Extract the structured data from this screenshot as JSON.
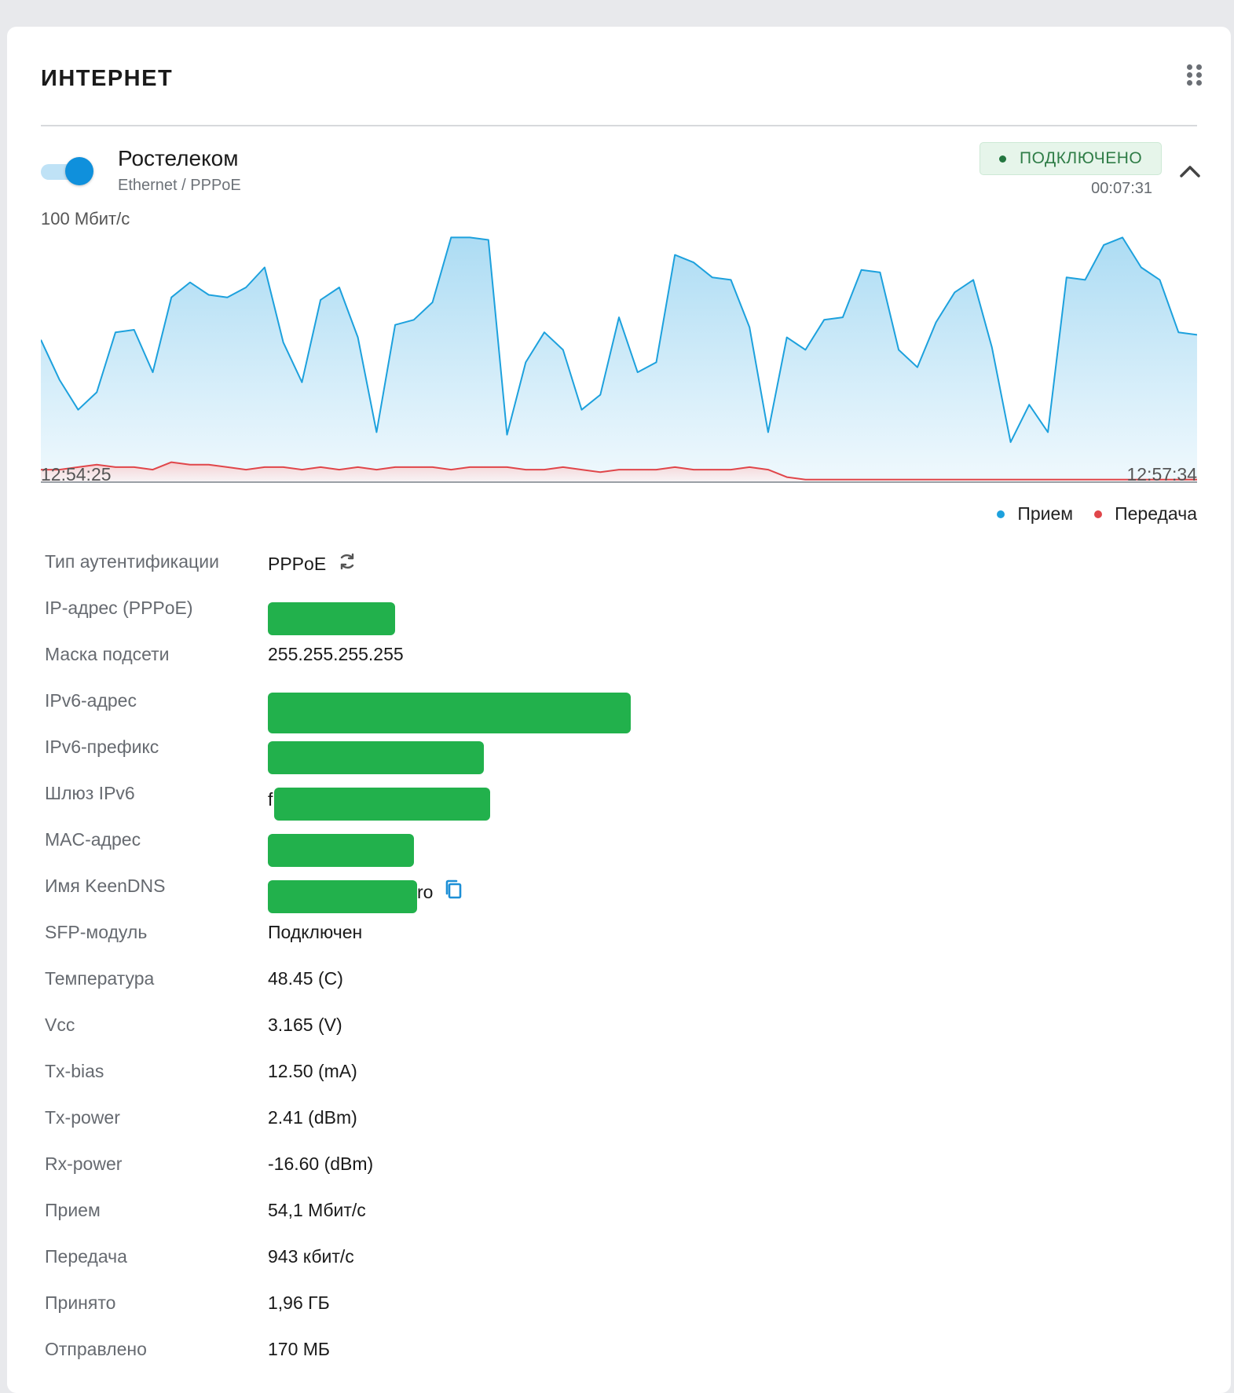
{
  "widget": {
    "title": "ИНТЕРНЕТ",
    "menu_icon": "drag-handle-icon"
  },
  "connection": {
    "name": "Ростелеком",
    "type": "Ethernet / PPPoE",
    "status": "ПОДКЛЮЧЕНО",
    "uptime": "00:07:31",
    "enabled": true,
    "colors": {
      "accent": "#0f90dc",
      "status_bg": "#e6f5ea",
      "status_text": "#2f7d47"
    }
  },
  "chart_data": {
    "type": "area",
    "title": "",
    "y_max_label": "100 Мбит/с",
    "ylim": [
      0,
      100
    ],
    "x_start_label": "12:54:25",
    "x_end_label": "12:57:34",
    "series": [
      {
        "name": "Прием",
        "color": "#1da1dd",
        "values": [
          57,
          41,
          29,
          36,
          60,
          61,
          44,
          74,
          80,
          75,
          74,
          78,
          86,
          56,
          40,
          73,
          78,
          58,
          20,
          63,
          65,
          72,
          98,
          98,
          97,
          19,
          48,
          60,
          53,
          29,
          35,
          66,
          44,
          48,
          91,
          88,
          82,
          81,
          62,
          20,
          58,
          53,
          65,
          66,
          85,
          84,
          53,
          46,
          64,
          76,
          81,
          54,
          16,
          31,
          20,
          82,
          81,
          95,
          98,
          86,
          81,
          60,
          59
        ]
      },
      {
        "name": "Передача",
        "color": "#e0464a",
        "values": [
          5,
          5,
          6,
          7,
          6,
          6,
          5,
          8,
          7,
          7,
          6,
          5,
          6,
          6,
          5,
          6,
          5,
          6,
          5,
          6,
          6,
          6,
          5,
          6,
          6,
          6,
          5,
          5,
          6,
          5,
          4,
          5,
          5,
          5,
          6,
          5,
          5,
          5,
          6,
          5,
          2,
          1,
          1,
          1,
          1,
          1,
          1,
          1,
          1,
          1,
          1,
          1,
          1,
          1,
          1,
          1,
          1,
          1,
          1,
          1,
          1,
          1,
          1
        ]
      }
    ],
    "grid": false,
    "legend": "bottom-right"
  },
  "legend": {
    "rx": "Прием",
    "tx": "Передача"
  },
  "details": [
    {
      "label": "Тип аутентификации",
      "value": "PPPoE",
      "icon": "refresh-icon"
    },
    {
      "label": "IP-адрес (PPPoE)",
      "value": "",
      "redacted": true
    },
    {
      "label": "Маска подсети",
      "value": "255.255.255.255"
    },
    {
      "label": "IPv6-адрес",
      "value": "",
      "redacted": true
    },
    {
      "label": "IPv6-префикс",
      "value": "",
      "redacted": true
    },
    {
      "label": "Шлюз IPv6",
      "value": "f",
      "redacted": true
    },
    {
      "label": "MAC-адрес",
      "value": "",
      "redacted": true
    },
    {
      "label": "Имя KeenDNS",
      "value": "ro",
      "redacted": true,
      "icon": "copy-icon"
    },
    {
      "label": "SFP-модуль",
      "value": "Подключен"
    },
    {
      "label": "Температура",
      "value": "48.45 (C)"
    },
    {
      "label": "Vcc",
      "value": "3.165 (V)"
    },
    {
      "label": "Tx-bias",
      "value": "12.50 (mA)"
    },
    {
      "label": "Tx-power",
      "value": "2.41 (dBm)"
    },
    {
      "label": "Rx-power",
      "value": "-16.60 (dBm)"
    },
    {
      "label": "Прием",
      "value": "54,1 Мбит/с"
    },
    {
      "label": "Передача",
      "value": "943 кбит/с"
    },
    {
      "label": "Принято",
      "value": "1,96 ГБ"
    },
    {
      "label": "Отправлено",
      "value": "170 МБ"
    }
  ]
}
